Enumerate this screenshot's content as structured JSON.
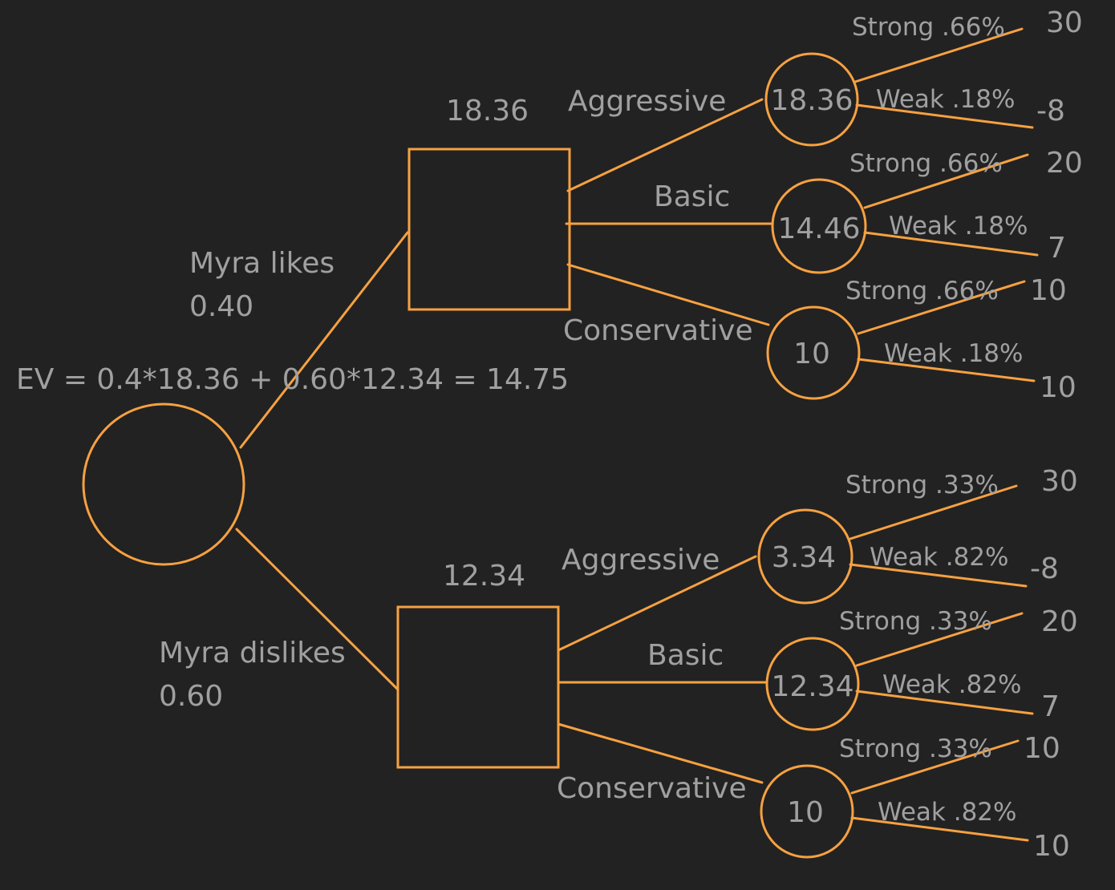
{
  "colors": {
    "background": "#222222",
    "stroke": "#F7A141",
    "text": "#A0A0A0"
  },
  "ev_formula": "EV = 0.4*18.36 + 0.60*12.34 = 14.75",
  "root": {
    "likes": {
      "label": "Myra likes",
      "prob": "0.40"
    },
    "dislikes": {
      "label": "Myra dislikes",
      "prob": "0.60"
    }
  },
  "upper": {
    "decision_value": "18.36",
    "options": [
      {
        "label": "Aggressive",
        "node_value": "18.36",
        "strong_label": "Strong .66%",
        "strong_payoff": "30",
        "weak_label": "Weak .18%",
        "weak_payoff": "-8"
      },
      {
        "label": "Basic",
        "node_value": "14.46",
        "strong_label": "Strong .66%",
        "strong_payoff": "20",
        "weak_label": "Weak .18%",
        "weak_payoff": "7"
      },
      {
        "label": "Conservative",
        "node_value": "10",
        "strong_label": "Strong .66%",
        "strong_payoff": "10",
        "weak_label": "Weak .18%",
        "weak_payoff": "10"
      }
    ]
  },
  "lower": {
    "decision_value": "12.34",
    "options": [
      {
        "label": "Aggressive",
        "node_value": "3.34",
        "strong_label": "Strong .33%",
        "strong_payoff": "30",
        "weak_label": "Weak .82%",
        "weak_payoff": "-8"
      },
      {
        "label": "Basic",
        "node_value": "12.34",
        "strong_label": "Strong .33%",
        "strong_payoff": "20",
        "weak_label": "Weak .82%",
        "weak_payoff": "7"
      },
      {
        "label": "Conservative",
        "node_value": "10",
        "strong_label": "Strong .33%",
        "strong_payoff": "10",
        "weak_label": "Weak .82%",
        "weak_payoff": "10"
      }
    ]
  }
}
